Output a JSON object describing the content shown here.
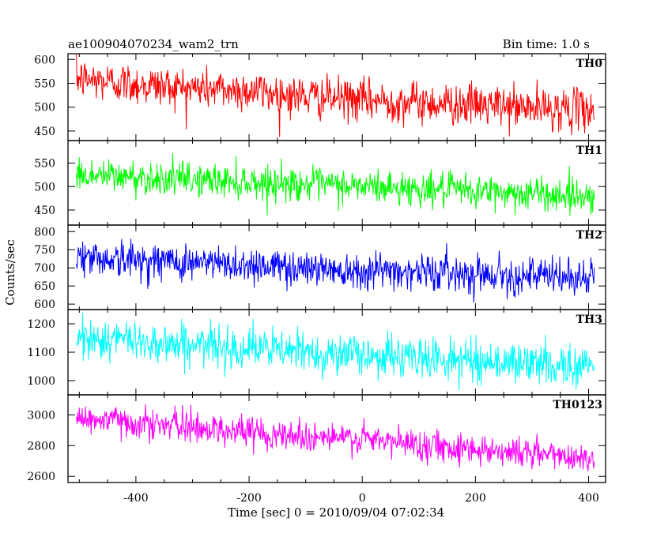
{
  "chart_data": {
    "type": "line",
    "title": "ae100904070234_wam2_trn",
    "subtitle": "Bin time: 1.0 s",
    "xlabel": "Time [sec] 0 = 2010/09/04 07:02:34",
    "ylabel": "Counts/sec",
    "xlim": [
      -520,
      430
    ],
    "x_range": [
      -505,
      410
    ],
    "bin_time_s": 1.0,
    "xticks": [
      -400,
      -200,
      0,
      200,
      400
    ],
    "grid": false,
    "panels": [
      {
        "name": "TH0",
        "color": "#ff0000",
        "ylim": [
          430,
          612
        ],
        "yticks": [
          450,
          500,
          550,
          600
        ],
        "trend_start": 560,
        "trend_end": 495,
        "noise_amplitude": 30,
        "anchors": [
          {
            "x": -505,
            "y": 560
          },
          {
            "x": -400,
            "y": 548
          },
          {
            "x": -300,
            "y": 540
          },
          {
            "x": -200,
            "y": 535
          },
          {
            "x": -100,
            "y": 522
          },
          {
            "x": 0,
            "y": 515
          },
          {
            "x": 100,
            "y": 510
          },
          {
            "x": 200,
            "y": 505
          },
          {
            "x": 300,
            "y": 498
          },
          {
            "x": 410,
            "y": 495
          }
        ]
      },
      {
        "name": "TH1",
        "color": "#00ff00",
        "ylim": [
          418,
          598
        ],
        "yticks": [
          450,
          500,
          550
        ],
        "trend_start": 525,
        "trend_end": 480,
        "noise_amplitude": 25,
        "anchors": [
          {
            "x": -505,
            "y": 525
          },
          {
            "x": -400,
            "y": 520
          },
          {
            "x": -300,
            "y": 515
          },
          {
            "x": -200,
            "y": 510
          },
          {
            "x": -100,
            "y": 505
          },
          {
            "x": 0,
            "y": 500
          },
          {
            "x": 100,
            "y": 495
          },
          {
            "x": 200,
            "y": 490
          },
          {
            "x": 300,
            "y": 485
          },
          {
            "x": 410,
            "y": 480
          }
        ]
      },
      {
        "name": "TH2",
        "color": "#0000ff",
        "ylim": [
          585,
          818
        ],
        "yticks": [
          600,
          650,
          700,
          750,
          800
        ],
        "trend_start": 730,
        "trend_end": 670,
        "noise_amplitude": 35,
        "anchors": [
          {
            "x": -505,
            "y": 730
          },
          {
            "x": -400,
            "y": 722
          },
          {
            "x": -300,
            "y": 715
          },
          {
            "x": -200,
            "y": 708
          },
          {
            "x": -100,
            "y": 700
          },
          {
            "x": 0,
            "y": 695
          },
          {
            "x": 100,
            "y": 690
          },
          {
            "x": 200,
            "y": 685
          },
          {
            "x": 300,
            "y": 678
          },
          {
            "x": 410,
            "y": 670
          }
        ]
      },
      {
        "name": "TH3",
        "color": "#00ffff",
        "ylim": [
          950,
          1250
        ],
        "yticks": [
          1000,
          1100,
          1200
        ],
        "trend_start": 1150,
        "trend_end": 1050,
        "noise_amplitude": 50,
        "anchors": [
          {
            "x": -505,
            "y": 1150
          },
          {
            "x": -400,
            "y": 1140
          },
          {
            "x": -300,
            "y": 1125
          },
          {
            "x": -200,
            "y": 1115
          },
          {
            "x": -100,
            "y": 1100
          },
          {
            "x": 0,
            "y": 1090
          },
          {
            "x": 100,
            "y": 1080
          },
          {
            "x": 200,
            "y": 1070
          },
          {
            "x": 300,
            "y": 1060
          },
          {
            "x": 410,
            "y": 1050
          }
        ]
      },
      {
        "name": "TH0123",
        "color": "#ff00ff",
        "ylim": [
          2560,
          3130
        ],
        "yticks": [
          2600,
          2800,
          3000
        ],
        "trend_start": 2980,
        "trend_end": 2720,
        "noise_amplitude": 70,
        "anchors": [
          {
            "x": -505,
            "y": 2980
          },
          {
            "x": -400,
            "y": 2950
          },
          {
            "x": -300,
            "y": 2920
          },
          {
            "x": -200,
            "y": 2890
          },
          {
            "x": -100,
            "y": 2860
          },
          {
            "x": 0,
            "y": 2840
          },
          {
            "x": 100,
            "y": 2810
          },
          {
            "x": 200,
            "y": 2780
          },
          {
            "x": 300,
            "y": 2750
          },
          {
            "x": 410,
            "y": 2720
          }
        ]
      }
    ]
  }
}
